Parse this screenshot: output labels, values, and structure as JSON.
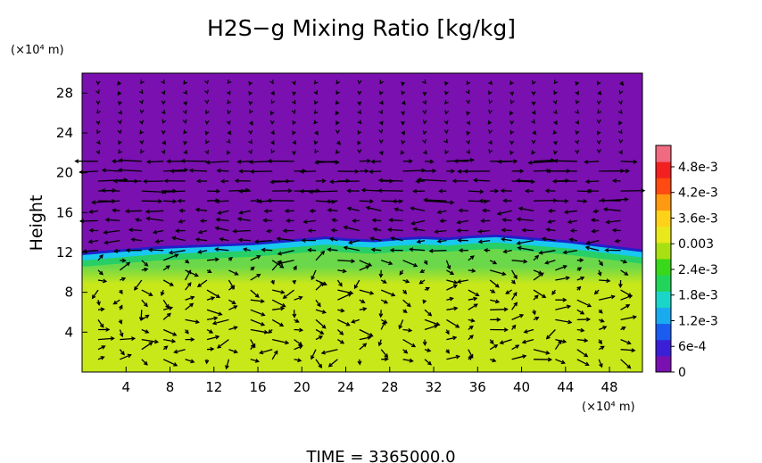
{
  "chart_data": {
    "type": "heatmap",
    "title": "H2S−g Mixing Ratio [kg/kg]",
    "ylabel": "Height",
    "y_unit": "(×10⁴ m)",
    "x_unit": "(×10⁴ m)",
    "x_ticks": [
      4,
      8,
      12,
      16,
      20,
      24,
      28,
      32,
      36,
      40,
      44,
      48
    ],
    "y_ticks": [
      4,
      8,
      12,
      16,
      20,
      24,
      28
    ],
    "xlim": [
      0,
      51
    ],
    "ylim": [
      0,
      30
    ],
    "colorbar": {
      "ticks": [
        {
          "value": 0,
          "label": "0"
        },
        {
          "value": 0.0006,
          "label": "6e-4"
        },
        {
          "value": 0.0012,
          "label": "1.2e-3"
        },
        {
          "value": 0.0018,
          "label": "1.8e-3"
        },
        {
          "value": 0.0024,
          "label": "2.4e-3"
        },
        {
          "value": 0.003,
          "label": "0.003"
        },
        {
          "value": 0.0036,
          "label": "3.6e-3"
        },
        {
          "value": 0.0042,
          "label": "4.2e-3"
        },
        {
          "value": 0.0048,
          "label": "4.8e-3"
        }
      ],
      "range": [
        0,
        0.0053
      ],
      "colors": [
        "#7a10b0",
        "#3a1fd6",
        "#1a5cf0",
        "#19aaf0",
        "#1ad6c8",
        "#22d45a",
        "#39d81a",
        "#a8e012",
        "#e8e81a",
        "#ffd21a",
        "#ff9a10",
        "#ff4a12",
        "#f22020",
        "#f06a80"
      ]
    },
    "field": {
      "background_value": 0,
      "lower_layer_value": 0.0033,
      "lower_layer_top": 9,
      "gradient_layer_value": 0.0026,
      "interface_height": [
        12.0,
        12.2,
        12.4,
        12.6,
        12.7,
        12.8,
        12.9,
        13.0,
        13.2,
        13.4,
        13.6,
        13.4,
        13.3,
        13.5,
        13.6,
        13.5,
        13.7,
        13.8,
        13.6,
        13.4,
        13.2,
        12.9,
        12.6,
        12.3
      ],
      "colors": {
        "background": "#7a10b0",
        "interface_dark": "#2020c8",
        "interface_light": "#19c8f0",
        "transition": "#27cf66",
        "layer": "#6ad84a",
        "lower": "#c8e81a"
      }
    },
    "wind_vectors": "quiver field (arrows) overlaid on the contour plot"
  },
  "footer": {
    "time_label": "TIME = 3365000.0"
  }
}
